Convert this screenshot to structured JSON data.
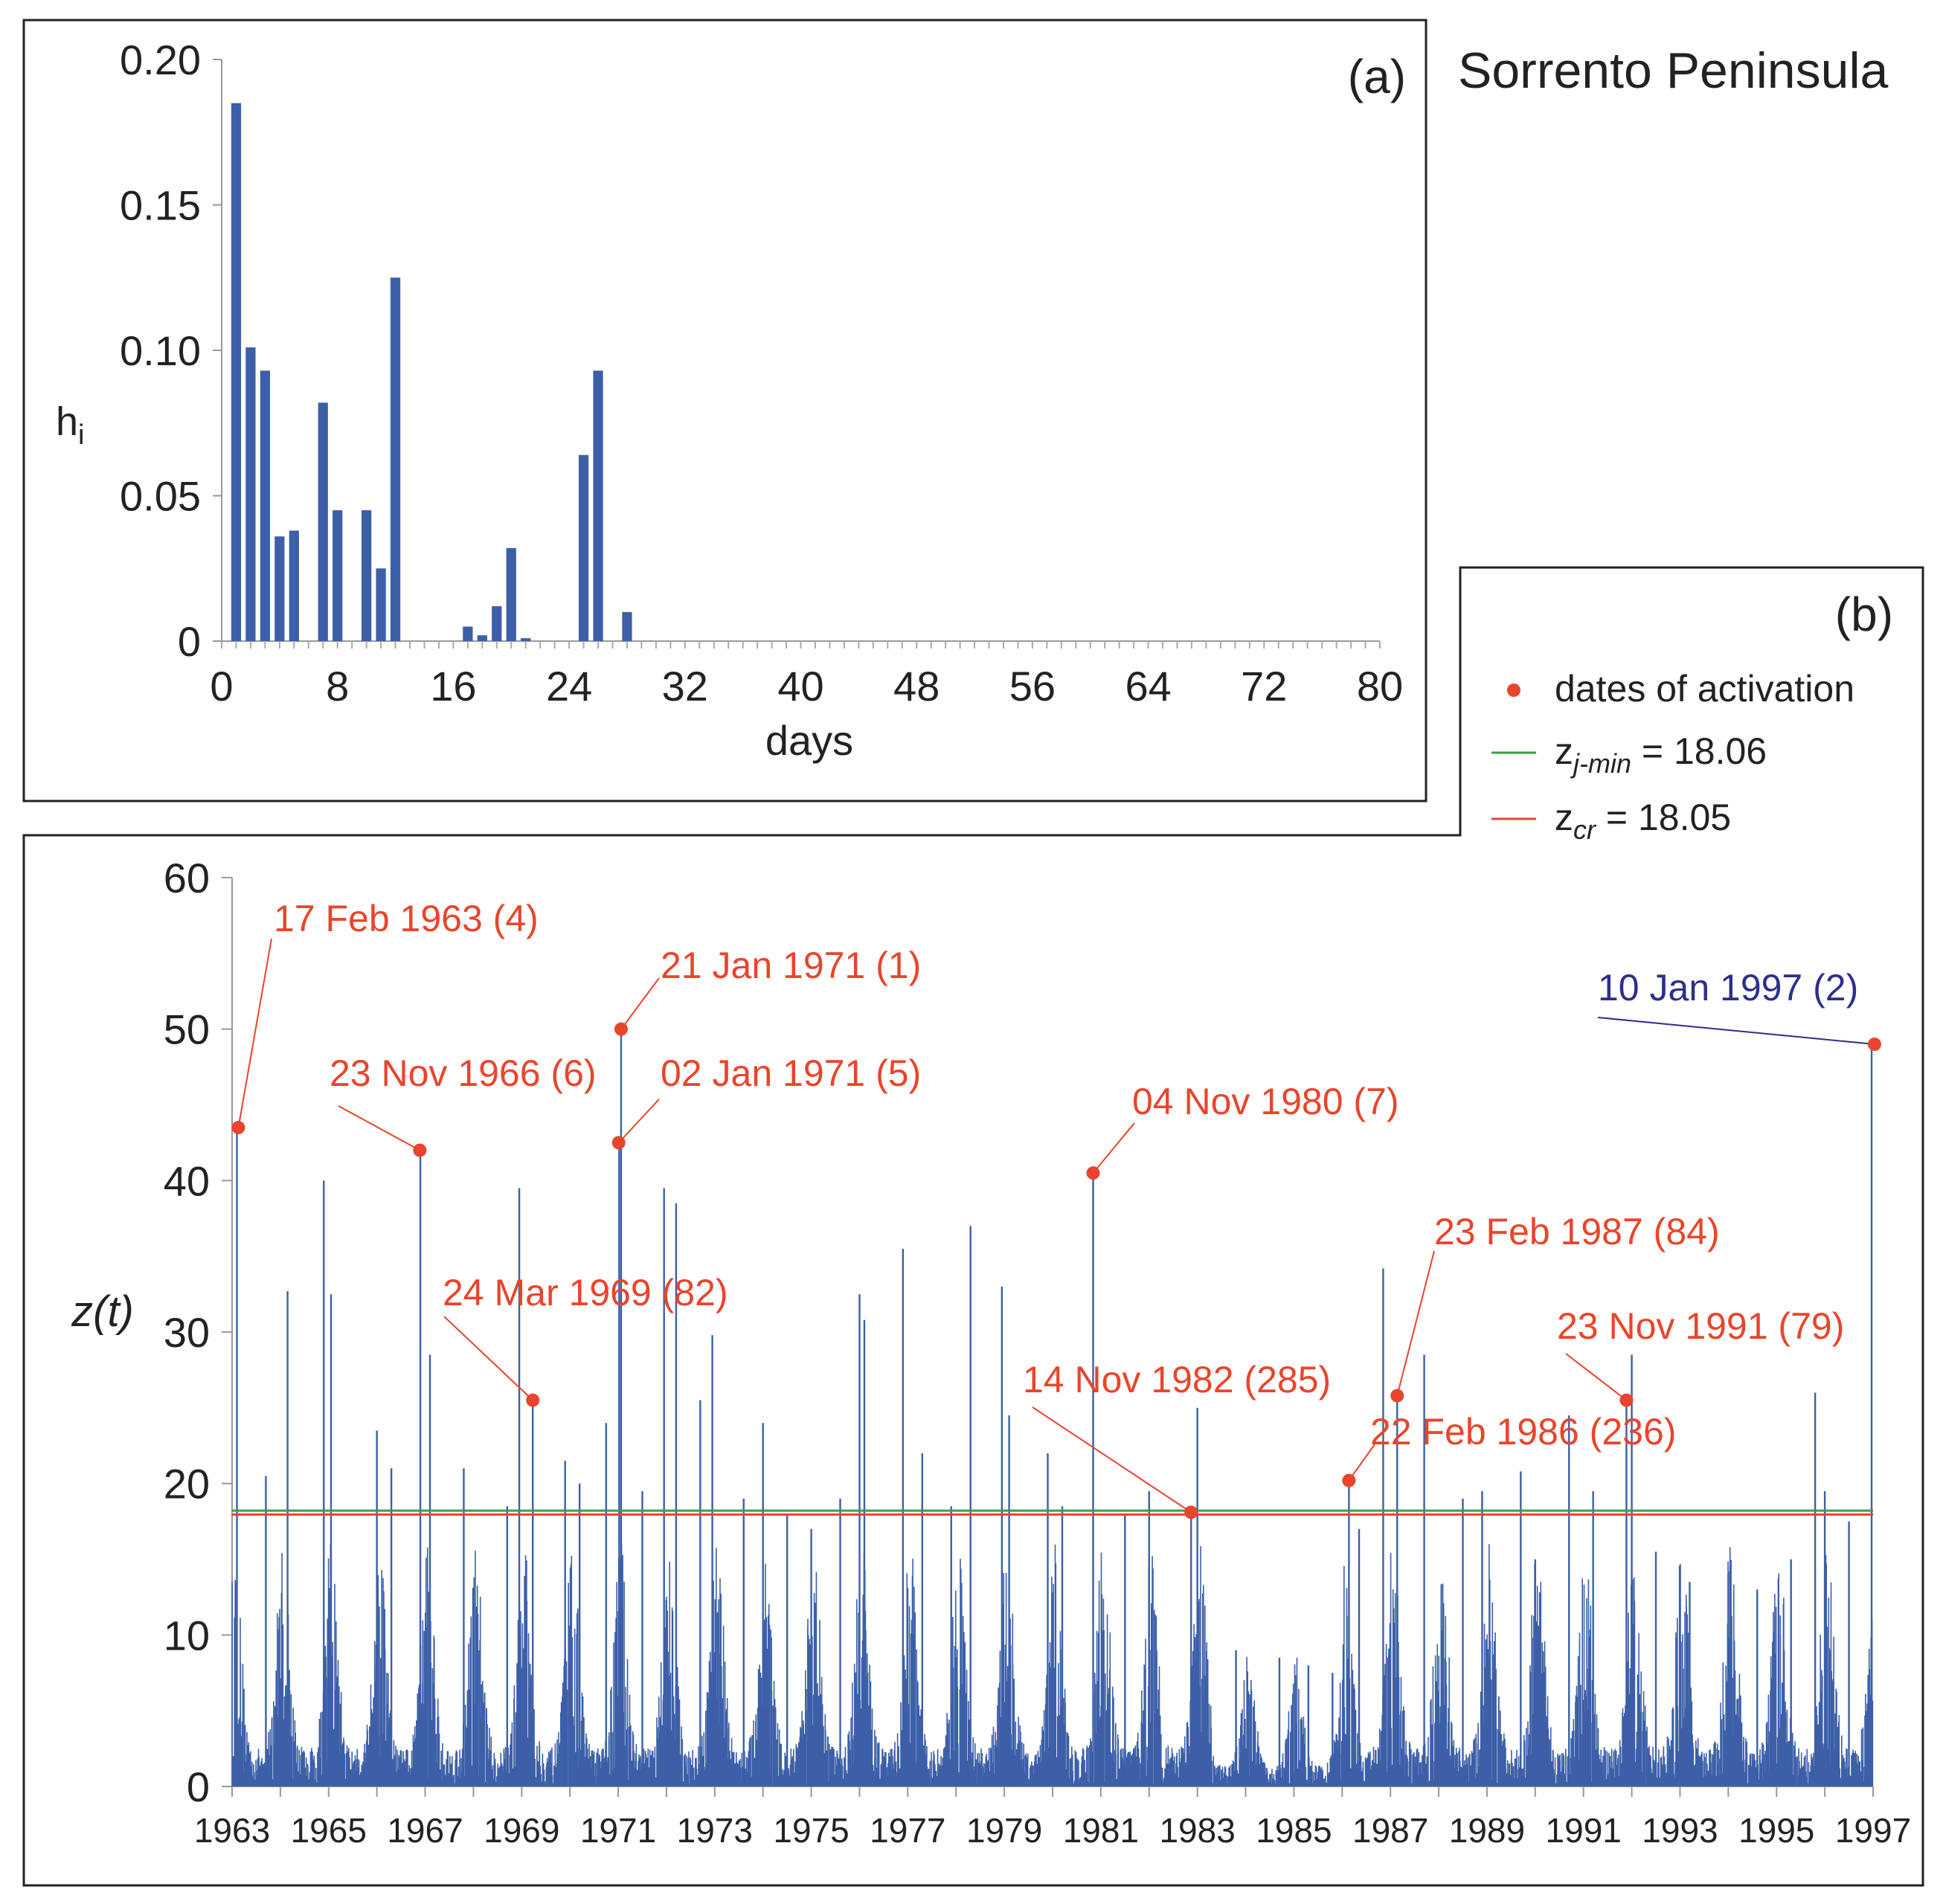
{
  "figure_title": "Sorrento Peninsula",
  "chart_data": [
    {
      "type": "bar",
      "panel_label": "(a)",
      "xlabel": "days",
      "ylabel_main": "h",
      "ylabel_sub": "i",
      "xlim": [
        0,
        80
      ],
      "ylim": [
        0,
        0.2
      ],
      "xticks": [
        0,
        8,
        16,
        24,
        32,
        40,
        48,
        56,
        64,
        72,
        80
      ],
      "yticks": [
        {
          "v": 0,
          "label": "0"
        },
        {
          "v": 0.05,
          "label": "0.05"
        },
        {
          "v": 0.1,
          "label": "0.10"
        },
        {
          "v": 0.15,
          "label": "0.15"
        },
        {
          "v": 0.2,
          "label": "0.20"
        }
      ],
      "x": [
        1,
        2,
        3,
        4,
        5,
        7,
        8,
        10,
        11,
        12,
        17,
        18,
        19,
        20,
        21,
        25,
        26,
        28
      ],
      "values": [
        0.185,
        0.101,
        0.093,
        0.036,
        0.038,
        0.082,
        0.045,
        0.045,
        0.025,
        0.125,
        0.005,
        0.002,
        0.012,
        0.032,
        0.001,
        0.064,
        0.093,
        0.01
      ],
      "color": "#3c5fa8"
    },
    {
      "type": "bar",
      "panel_label": "(b)",
      "ylabel": "z(t)",
      "xlim": [
        1963,
        1997
      ],
      "ylim": [
        0,
        60
      ],
      "xticks": [
        "1963",
        "1965",
        "1967",
        "1969",
        "1971",
        "1973",
        "1975",
        "1977",
        "1979",
        "1981",
        "1983",
        "1985",
        "1987",
        "1989",
        "1991",
        "1993",
        "1995",
        "1997"
      ],
      "yticks": [
        0,
        10,
        20,
        30,
        40,
        50,
        60
      ],
      "peaks": [
        {
          "x": 1963.1,
          "y": 43.5
        },
        {
          "x": 1963.7,
          "y": 20.5
        },
        {
          "x": 1964.15,
          "y": 32.7
        },
        {
          "x": 1964.9,
          "y": 40.0
        },
        {
          "x": 1965.05,
          "y": 32.5
        },
        {
          "x": 1966.0,
          "y": 23.5
        },
        {
          "x": 1966.3,
          "y": 21.0
        },
        {
          "x": 1966.9,
          "y": 42.0
        },
        {
          "x": 1967.1,
          "y": 28.5
        },
        {
          "x": 1967.8,
          "y": 21.0
        },
        {
          "x": 1968.7,
          "y": 18.5
        },
        {
          "x": 1968.95,
          "y": 39.5
        },
        {
          "x": 1969.23,
          "y": 25.5
        },
        {
          "x": 1969.9,
          "y": 21.5
        },
        {
          "x": 1970.2,
          "y": 20.0
        },
        {
          "x": 1970.75,
          "y": 24.0
        },
        {
          "x": 1971.02,
          "y": 42.5
        },
        {
          "x": 1971.06,
          "y": 50.0
        },
        {
          "x": 1971.5,
          "y": 19.5
        },
        {
          "x": 1971.95,
          "y": 39.5
        },
        {
          "x": 1972.2,
          "y": 38.5
        },
        {
          "x": 1972.7,
          "y": 25.5
        },
        {
          "x": 1972.95,
          "y": 29.8
        },
        {
          "x": 1973.6,
          "y": 19.0
        },
        {
          "x": 1974.0,
          "y": 24.0
        },
        {
          "x": 1974.5,
          "y": 18.0
        },
        {
          "x": 1975.0,
          "y": 17.0
        },
        {
          "x": 1975.6,
          "y": 19.0
        },
        {
          "x": 1976.0,
          "y": 32.5
        },
        {
          "x": 1976.1,
          "y": 30.8
        },
        {
          "x": 1976.9,
          "y": 35.5
        },
        {
          "x": 1977.3,
          "y": 22.0
        },
        {
          "x": 1977.9,
          "y": 18.5
        },
        {
          "x": 1978.3,
          "y": 37.0
        },
        {
          "x": 1978.95,
          "y": 33.0
        },
        {
          "x": 1979.1,
          "y": 24.5
        },
        {
          "x": 1979.9,
          "y": 22.0
        },
        {
          "x": 1980.2,
          "y": 18.5
        },
        {
          "x": 1980.84,
          "y": 40.5
        },
        {
          "x": 1981.5,
          "y": 18.0
        },
        {
          "x": 1982.0,
          "y": 19.5
        },
        {
          "x": 1982.87,
          "y": 18.1
        },
        {
          "x": 1983.0,
          "y": 25.0
        },
        {
          "x": 1983.8,
          "y": 9.0
        },
        {
          "x": 1984.7,
          "y": 8.5
        },
        {
          "x": 1985.3,
          "y": 8.0
        },
        {
          "x": 1985.8,
          "y": 7.5
        },
        {
          "x": 1986.14,
          "y": 20.2
        },
        {
          "x": 1986.35,
          "y": 17.0
        },
        {
          "x": 1986.85,
          "y": 34.2
        },
        {
          "x": 1987.14,
          "y": 25.8
        },
        {
          "x": 1987.7,
          "y": 28.5
        },
        {
          "x": 1988.5,
          "y": 19.0
        },
        {
          "x": 1988.9,
          "y": 19.5
        },
        {
          "x": 1989.7,
          "y": 20.8
        },
        {
          "x": 1990.0,
          "y": 15.0
        },
        {
          "x": 1990.7,
          "y": 24.5
        },
        {
          "x": 1991.2,
          "y": 19.5
        },
        {
          "x": 1991.89,
          "y": 25.5
        },
        {
          "x": 1992.0,
          "y": 28.5
        },
        {
          "x": 1992.5,
          "y": 15.5
        },
        {
          "x": 1993.2,
          "y": 13.5
        },
        {
          "x": 1994.0,
          "y": 14.0
        },
        {
          "x": 1994.6,
          "y": 13.0
        },
        {
          "x": 1995.3,
          "y": 15.0
        },
        {
          "x": 1995.8,
          "y": 26.0
        },
        {
          "x": 1996.0,
          "y": 19.5
        },
        {
          "x": 1996.5,
          "y": 17.5
        },
        {
          "x": 1996.97,
          "y": 49.0
        }
      ],
      "thresholds": [
        {
          "name": "z_j-min",
          "value": 18.06,
          "color": "#3aa04a"
        },
        {
          "name": "z_cr",
          "value": 18.05,
          "color": "#e8452c"
        }
      ],
      "activations": [
        {
          "x": 1963.13,
          "y": 43.5,
          "label": "17 Feb 1963 (4)",
          "color": "#e8452c"
        },
        {
          "x": 1966.89,
          "y": 42.0,
          "label": "23 Nov 1966 (6)",
          "color": "#e8452c"
        },
        {
          "x": 1969.23,
          "y": 25.5,
          "label": "24 Mar 1969 (82)",
          "color": "#e8452c"
        },
        {
          "x": 1971.06,
          "y": 50.0,
          "label": "21 Jan 1971 (1)",
          "color": "#e8452c"
        },
        {
          "x": 1971.01,
          "y": 42.5,
          "label": "02 Jan 1971 (5)",
          "color": "#e8452c"
        },
        {
          "x": 1980.84,
          "y": 40.5,
          "label": "04 Nov 1980 (7)",
          "color": "#e8452c"
        },
        {
          "x": 1982.87,
          "y": 18.1,
          "label": "14 Nov 1982 (285)",
          "color": "#e8452c"
        },
        {
          "x": 1986.14,
          "y": 20.2,
          "label": "22 Feb 1986 (236)",
          "color": "#e8452c"
        },
        {
          "x": 1987.14,
          "y": 25.8,
          "label": "23 Feb 1987 (84)",
          "color": "#e8452c"
        },
        {
          "x": 1991.89,
          "y": 25.5,
          "label": "23 Nov 1991 (79)",
          "color": "#e8452c"
        },
        {
          "x": 1997.03,
          "y": 49.0,
          "label": "10 Jan 1997 (2)",
          "color": "#e8452c",
          "label_color": "#2e2e8c"
        }
      ],
      "legend": {
        "position": "top-right",
        "dot_label": "dates of activation",
        "green_main": "z",
        "green_sub": "j-min",
        "green_value": " = 18.06",
        "red_main": "z",
        "red_sub": "cr",
        "red_value": " = 18.05"
      },
      "color": "#3c5fa8"
    }
  ]
}
